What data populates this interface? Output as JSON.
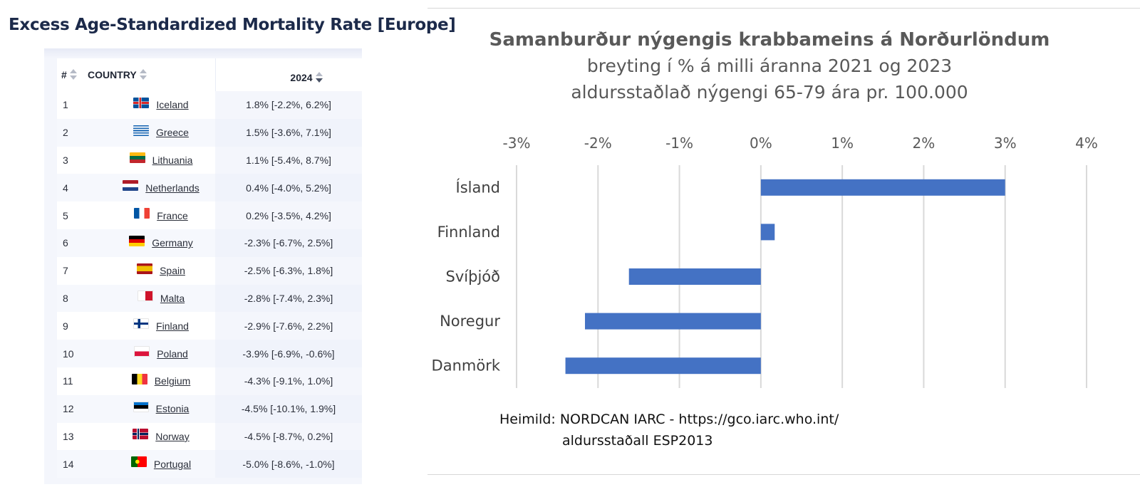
{
  "left": {
    "title": "Excess Age-Standardized Mortality Rate [Europe]",
    "table": {
      "headers": {
        "num": "#",
        "country": "COUNTRY",
        "year": "2024"
      },
      "rows": [
        {
          "rank": "1",
          "country": "Iceland",
          "value": "1.8% [-2.2%, 6.2%]",
          "flag": "iceland-flag-icon"
        },
        {
          "rank": "2",
          "country": "Greece",
          "value": "1.5% [-3.6%, 7.1%]",
          "flag": "greece-flag-icon"
        },
        {
          "rank": "3",
          "country": "Lithuania",
          "value": "1.1% [-5.4%, 8.7%]",
          "flag": "lithuania-flag-icon"
        },
        {
          "rank": "4",
          "country": "Netherlands",
          "value": "0.4% [-4.0%, 5.2%]",
          "flag": "netherlands-flag-icon"
        },
        {
          "rank": "5",
          "country": "France",
          "value": "0.2% [-3.5%, 4.2%]",
          "flag": "france-flag-icon"
        },
        {
          "rank": "6",
          "country": "Germany",
          "value": "-2.3% [-6.7%, 2.5%]",
          "flag": "germany-flag-icon"
        },
        {
          "rank": "7",
          "country": "Spain",
          "value": "-2.5% [-6.3%, 1.8%]",
          "flag": "spain-flag-icon"
        },
        {
          "rank": "8",
          "country": "Malta",
          "value": "-2.8% [-7.4%, 2.3%]",
          "flag": "malta-flag-icon"
        },
        {
          "rank": "9",
          "country": "Finland",
          "value": "-2.9% [-7.6%, 2.2%]",
          "flag": "finland-flag-icon"
        },
        {
          "rank": "10",
          "country": "Poland",
          "value": "-3.9% [-6.9%, -0.6%]",
          "flag": "poland-flag-icon"
        },
        {
          "rank": "11",
          "country": "Belgium",
          "value": "-4.3% [-9.1%, 1.0%]",
          "flag": "belgium-flag-icon"
        },
        {
          "rank": "12",
          "country": "Estonia",
          "value": "-4.5% [-10.1%, 1.9%]",
          "flag": "estonia-flag-icon"
        },
        {
          "rank": "13",
          "country": "Norway",
          "value": "-4.5% [-8.7%, 0.2%]",
          "flag": "norway-flag-icon"
        },
        {
          "rank": "14",
          "country": "Portugal",
          "value": "-5.0% [-8.6%, -1.0%]",
          "flag": "portugal-flag-icon"
        }
      ]
    }
  },
  "right": {
    "source_line1": "Heimild: NORDCAN IARC - https://gco.iarc.who.int/",
    "source_line2": "aldursstaðall ESP2013"
  },
  "chart_data": {
    "type": "bar",
    "orientation": "horizontal",
    "title": "Samanburður nýgengis krabbameins á Norðurlöndum",
    "subtitle_lines": [
      "breyting í % á milli áranna 2021 og 2023",
      "aldursstaðlað nýgengi 65-79 ára pr. 100.000"
    ],
    "categories": [
      "Ísland",
      "Finnland",
      "Svíþjóð",
      "Noregur",
      "Danmörk"
    ],
    "values": [
      3.0,
      0.17,
      -1.62,
      -2.16,
      -2.4
    ],
    "xlim": [
      -3,
      4
    ],
    "x_ticks": [
      -3,
      -2,
      -1,
      0,
      1,
      2,
      3,
      4
    ],
    "x_tick_labels": [
      "-3%",
      "-2%",
      "-1%",
      "0%",
      "1%",
      "2%",
      "3%",
      "4%"
    ],
    "x_axis_position": "top",
    "grid": "vertical",
    "bar_color": "#4472c4",
    "grid_color": "#d9d9d9",
    "legend": "none"
  }
}
